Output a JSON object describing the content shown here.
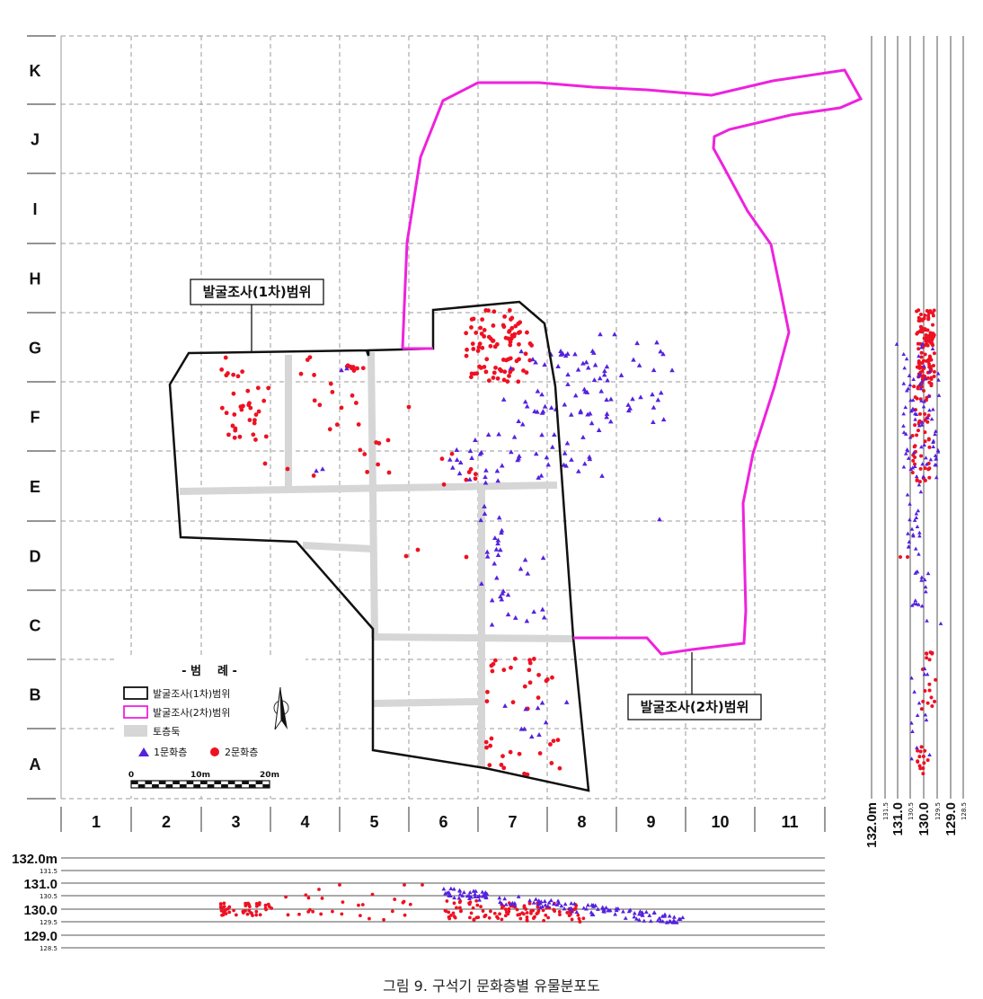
{
  "caption": "그림 9. 구석기 문화층별 유물분포도",
  "grid": {
    "columns": [
      "1",
      "2",
      "3",
      "4",
      "5",
      "6",
      "7",
      "8",
      "9",
      "10",
      "11"
    ],
    "rows": [
      "K",
      "J",
      "I",
      "H",
      "G",
      "F",
      "E",
      "D",
      "C",
      "B",
      "A"
    ]
  },
  "callouts": {
    "first_survey": "발굴조사(1차)범위",
    "second_survey": "발굴조사(2차)범위"
  },
  "legend": {
    "title": "- 범    례 -",
    "first_survey": "발굴조사(1차)범위",
    "second_survey": "발굴조사(2차)범위",
    "baulk": "토층둑",
    "layer1": "1문화층",
    "layer2": "2문화층",
    "scale_labels": [
      "0",
      "10m",
      "20m"
    ]
  },
  "colors": {
    "layer1": "#5522dd",
    "layer2": "#ee1122",
    "first_survey": "#111111",
    "second_survey": "#ee22dd",
    "baulk": "#d6d6d6",
    "grid": "#9a9a9a"
  },
  "bottom_profile": {
    "major_labels": [
      "132.0m",
      "131.0",
      "130.0",
      "129.0"
    ],
    "minor_labels": [
      "131.5",
      "130.5",
      "129.5",
      "128.5"
    ]
  },
  "side_profile": {
    "major_labels": [
      "132.0m",
      "131.0",
      "130.0",
      "129.0"
    ],
    "minor_labels": [
      "131.5",
      "130.5",
      "129.5",
      "128.5"
    ]
  }
}
